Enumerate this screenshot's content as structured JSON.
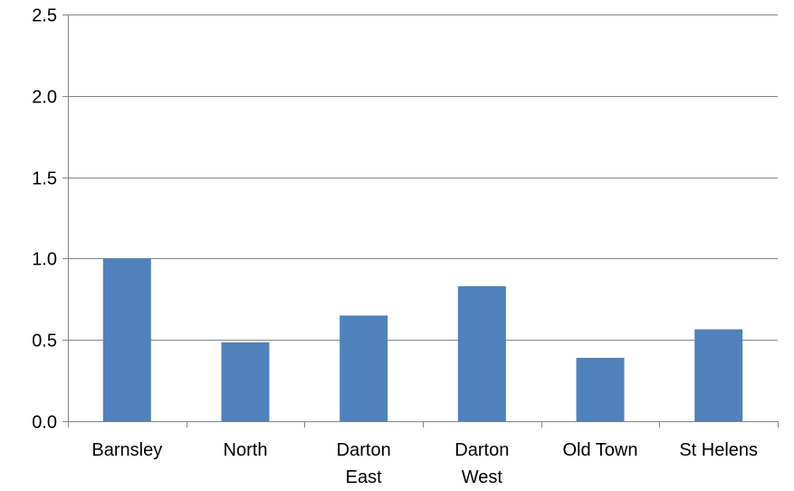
{
  "chart_data": {
    "type": "bar",
    "title": "",
    "xlabel": "",
    "ylabel": "",
    "categories": [
      [
        "Barnsley"
      ],
      [
        "North"
      ],
      [
        "Darton",
        "East"
      ],
      [
        "Darton",
        "West"
      ],
      [
        "Old Town"
      ],
      [
        "St Helens"
      ]
    ],
    "values": [
      1.0,
      0.485,
      0.65,
      0.83,
      0.39,
      0.565
    ],
    "ylim": [
      0,
      2.5
    ],
    "yticks": [
      "0.0",
      "0.5",
      "1.0",
      "1.5",
      "2.0",
      "2.5"
    ],
    "grid": true,
    "legend": "none",
    "bar_color": "#4f81bd",
    "grid_color": "#868686"
  }
}
